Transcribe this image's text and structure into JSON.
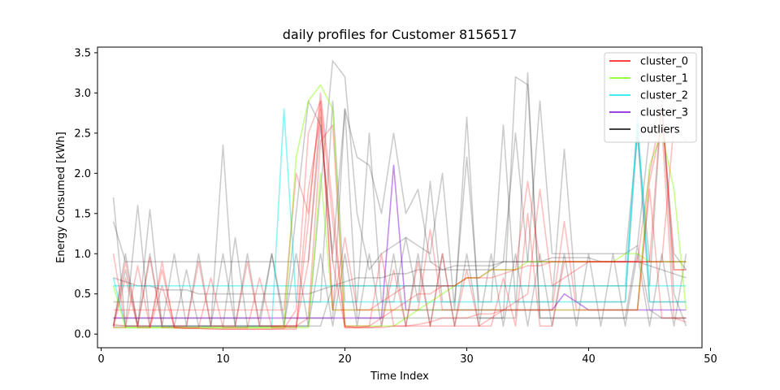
{
  "chart_data": {
    "type": "line",
    "title": "daily profiles for Customer 8156517",
    "xlabel": "Time Index",
    "ylabel": "Energy Consumed [kWh]",
    "xlim": [
      -0.3,
      49.3
    ],
    "ylim": [
      -0.17,
      3.57
    ],
    "x_ticks": [
      0,
      10,
      20,
      30,
      40,
      50
    ],
    "y_ticks": [
      0.0,
      0.5,
      1.0,
      1.5,
      2.0,
      2.5,
      3.0,
      3.5
    ],
    "x_tick_labels": [
      "0",
      "10",
      "20",
      "30",
      "40",
      "50"
    ],
    "y_tick_labels": [
      "0.0",
      "0.5",
      "1.0",
      "1.5",
      "2.0",
      "2.5",
      "3.0",
      "3.5"
    ],
    "grid": false,
    "legend_position": "top-right",
    "x": [
      1,
      2,
      3,
      4,
      5,
      6,
      7,
      8,
      9,
      10,
      11,
      12,
      13,
      14,
      15,
      16,
      17,
      18,
      19,
      20,
      21,
      22,
      23,
      24,
      25,
      26,
      27,
      28,
      29,
      30,
      31,
      32,
      33,
      34,
      35,
      36,
      37,
      38,
      39,
      40,
      41,
      42,
      43,
      44,
      45,
      46,
      47,
      48
    ],
    "series": [
      {
        "name": "cluster_0",
        "color": "#ff0000",
        "line_opacity": 0.25,
        "profiles": [
          [
            0.1,
            0.9,
            0.1,
            0.95,
            0.08,
            0.08,
            0.07,
            0.07,
            0.06,
            0.06,
            0.06,
            0.06,
            0.06,
            0.06,
            0.07,
            0.3,
            2.5,
            2.9,
            1.4,
            0.1,
            0.08,
            0.1,
            0.2,
            0.3,
            0.4,
            0.5,
            0.5,
            0.6,
            0.6,
            0.7,
            0.7,
            0.7,
            0.75,
            0.8,
            0.85,
            0.85,
            0.9,
            0.9,
            0.9,
            0.9,
            0.9,
            0.9,
            0.9,
            0.9,
            2.0,
            2.8,
            0.8,
            0.8
          ],
          [
            0.08,
            0.08,
            0.85,
            0.08,
            0.9,
            0.08,
            0.07,
            0.07,
            0.07,
            0.06,
            0.06,
            0.06,
            0.06,
            0.06,
            0.06,
            0.06,
            1.8,
            2.7,
            0.9,
            0.08,
            0.08,
            0.08,
            0.08,
            0.1,
            0.1,
            0.12,
            0.15,
            0.2,
            0.2,
            0.2,
            0.25,
            0.25,
            0.3,
            0.3,
            0.3,
            0.3,
            0.3,
            0.3,
            0.3,
            0.3,
            0.3,
            0.3,
            0.3,
            0.3,
            1.9,
            2.6,
            0.2,
            0.15
          ],
          [
            0.12,
            0.1,
            0.1,
            0.1,
            0.8,
            0.1,
            0.1,
            0.9,
            0.1,
            0.1,
            0.1,
            0.9,
            0.1,
            0.1,
            0.1,
            0.1,
            0.2,
            2.4,
            2.6,
            0.1,
            0.1,
            0.1,
            1.0,
            0.1,
            0.1,
            0.9,
            0.1,
            0.1,
            0.1,
            0.8,
            0.1,
            0.1,
            0.7,
            0.1,
            1.5,
            0.1,
            0.1,
            0.9,
            0.9,
            0.9,
            0.9,
            0.9,
            0.9,
            0.9,
            0.9,
            0.9,
            2.6,
            2.4
          ],
          [
            0.08,
            0.7,
            0.08,
            0.08,
            0.6,
            0.08,
            0.08,
            0.08,
            0.7,
            0.08,
            0.08,
            0.08,
            0.7,
            0.08,
            0.08,
            0.08,
            1.4,
            3.0,
            1.6,
            0.08,
            0.08,
            0.08,
            0.1,
            0.8,
            0.1,
            0.1,
            0.1,
            1.0,
            0.1,
            0.1,
            0.1,
            0.2,
            0.3,
            0.4,
            0.5,
            1.8,
            0.6,
            0.7,
            0.8,
            0.9,
            0.9,
            0.9,
            0.9,
            0.9,
            0.9,
            2.9,
            0.8,
            0.8
          ],
          [
            1.0,
            0.1,
            0.1,
            0.1,
            0.1,
            0.1,
            0.1,
            0.1,
            0.1,
            0.1,
            0.1,
            0.1,
            0.1,
            0.1,
            0.1,
            0.1,
            0.9,
            2.8,
            0.3,
            1.2,
            0.3,
            0.3,
            0.3,
            0.3,
            0.3,
            0.3,
            1.3,
            0.3,
            0.3,
            0.3,
            0.3,
            0.3,
            0.3,
            0.3,
            0.3,
            0.3,
            0.3,
            1.4,
            0.3,
            0.3,
            0.3,
            0.3,
            0.3,
            0.3,
            1.8,
            0.2,
            0.2,
            0.2
          ],
          [
            0.3,
            0.3,
            0.3,
            0.3,
            0.3,
            0.3,
            0.3,
            0.3,
            0.3,
            0.3,
            0.3,
            0.3,
            0.3,
            0.3,
            0.3,
            2.0,
            1.5,
            2.9,
            0.3,
            0.3,
            0.3,
            0.3,
            0.4,
            0.5,
            0.6,
            0.6,
            0.6,
            0.6,
            0.6,
            0.7,
            0.7,
            0.8,
            0.8,
            0.8,
            1.9,
            0.9,
            0.9,
            0.9,
            0.9,
            0.9,
            0.9,
            0.9,
            0.9,
            0.9,
            0.9,
            0.9,
            0.9,
            0.9
          ]
        ]
      },
      {
        "name": "cluster_1",
        "color": "#7fff00",
        "line_opacity": 0.45,
        "profiles": [
          [
            0.6,
            0.08,
            0.08,
            0.08,
            0.08,
            0.08,
            0.08,
            0.08,
            0.08,
            0.08,
            0.08,
            0.08,
            0.08,
            0.08,
            0.1,
            2.2,
            2.9,
            3.1,
            2.8,
            0.1,
            0.1,
            0.1,
            0.1,
            0.1,
            0.2,
            0.3,
            0.4,
            0.5,
            0.6,
            0.7,
            0.7,
            0.8,
            0.8,
            0.8,
            0.9,
            0.9,
            0.9,
            0.9,
            0.9,
            0.9,
            0.9,
            0.9,
            1.0,
            1.0,
            0.9,
            0.9,
            0.9,
            0.9
          ],
          [
            0.08,
            0.08,
            0.08,
            0.08,
            0.08,
            0.08,
            0.08,
            0.08,
            0.08,
            0.08,
            0.08,
            0.08,
            0.08,
            0.08,
            0.08,
            0.08,
            0.08,
            2.0,
            0.3,
            0.3,
            0.3,
            0.3,
            0.3,
            0.3,
            0.3,
            0.3,
            0.3,
            0.3,
            0.3,
            0.3,
            0.3,
            0.3,
            0.3,
            0.3,
            0.3,
            0.3,
            0.3,
            0.3,
            0.3,
            0.3,
            0.3,
            0.3,
            0.3,
            0.3,
            2.1,
            2.5,
            1.8,
            0.3
          ]
        ]
      },
      {
        "name": "cluster_2",
        "color": "#00e5ee",
        "line_opacity": 0.45,
        "profiles": [
          [
            0.7,
            0.1,
            0.1,
            0.1,
            0.1,
            0.1,
            0.1,
            0.1,
            0.1,
            0.1,
            0.1,
            0.1,
            0.1,
            0.1,
            2.8,
            0.4,
            0.4,
            0.4,
            0.4,
            0.4,
            0.4,
            0.4,
            0.4,
            0.4,
            0.4,
            0.4,
            0.4,
            0.4,
            0.4,
            0.4,
            0.4,
            0.4,
            0.4,
            0.4,
            0.4,
            0.4,
            0.4,
            0.4,
            0.4,
            0.4,
            0.4,
            0.4,
            0.4,
            2.7,
            0.4,
            0.4,
            0.4,
            0.4
          ],
          [
            0.6,
            0.6,
            0.6,
            0.6,
            0.6,
            0.6,
            0.6,
            0.6,
            0.6,
            0.6,
            0.6,
            0.6,
            0.6,
            0.6,
            0.6,
            0.6,
            0.6,
            0.6,
            0.6,
            0.6,
            0.6,
            0.6,
            0.6,
            0.6,
            0.6,
            0.6,
            0.6,
            0.6,
            0.6,
            0.6,
            0.6,
            0.6,
            0.6,
            0.6,
            0.6,
            0.6,
            0.6,
            0.6,
            0.6,
            0.6,
            0.6,
            0.6,
            0.6,
            2.6,
            0.6,
            0.6,
            0.6,
            0.6
          ]
        ]
      },
      {
        "name": "cluster_3",
        "color": "#7b00d6",
        "line_opacity": 0.45,
        "profiles": [
          [
            0.2,
            0.2,
            0.2,
            0.2,
            0.2,
            0.2,
            0.2,
            0.2,
            0.2,
            0.2,
            0.2,
            0.2,
            0.2,
            0.2,
            0.2,
            0.2,
            0.2,
            0.2,
            0.2,
            0.2,
            0.2,
            0.2,
            0.2,
            2.1,
            0.3,
            0.3,
            0.3,
            0.3,
            0.3,
            0.3,
            0.3,
            0.3,
            0.3,
            0.3,
            0.3,
            0.3,
            0.3,
            0.5,
            0.4,
            0.3,
            0.3,
            0.3,
            0.3,
            0.3,
            0.3,
            0.3,
            0.3,
            0.3
          ]
        ]
      },
      {
        "name": "outliers",
        "color": "#000000",
        "line_opacity": 0.2,
        "profiles": [
          [
            1.7,
            0.1,
            1.6,
            0.1,
            0.1,
            0.1,
            0.1,
            0.1,
            0.1,
            2.35,
            0.1,
            0.1,
            0.1,
            0.1,
            0.1,
            0.1,
            0.1,
            1.8,
            3.4,
            3.2,
            1.5,
            0.8,
            1.0,
            1.1,
            1.2,
            1.1,
            1.0,
            2.0,
            0.3,
            2.7,
            0.2,
            0.2,
            0.2,
            3.2,
            3.1,
            0.2,
            0.2,
            0.2,
            0.2,
            0.2,
            0.2,
            0.2,
            0.2,
            1.1,
            0.3,
            0.2,
            0.2,
            0.2
          ],
          [
            0.1,
            0.8,
            0.1,
            1.55,
            0.1,
            0.1,
            0.8,
            0.1,
            0.1,
            0.1,
            1.2,
            0.1,
            0.1,
            0.1,
            0.1,
            1.5,
            2.9,
            2.6,
            1.0,
            2.8,
            2.2,
            2.1,
            1.5,
            2.5,
            1.5,
            1.8,
            0.9,
            0.8,
            0.8,
            0.8,
            0.8,
            0.8,
            0.9,
            0.9,
            0.9,
            2.9,
            1.0,
            1.0,
            1.0,
            1.0,
            1.0,
            1.0,
            1.0,
            1.1,
            2.5,
            2.8,
            1.0,
            0.8
          ],
          [
            0.4,
            0.4,
            0.4,
            0.4,
            0.4,
            0.4,
            0.4,
            0.4,
            0.4,
            0.4,
            0.4,
            0.4,
            0.4,
            0.4,
            0.4,
            0.4,
            0.4,
            0.4,
            2.9,
            0.4,
            0.4,
            2.5,
            0.4,
            0.4,
            1.2,
            0.4,
            1.9,
            0.4,
            0.4,
            2.2,
            0.4,
            0.4,
            2.6,
            0.4,
            0.4,
            0.4,
            0.4,
            2.3,
            0.4,
            0.4,
            0.4,
            0.4,
            0.4,
            2.5,
            0.4,
            0.4,
            0.4,
            0.4
          ],
          [
            0.7,
            0.65,
            0.6,
            0.6,
            0.55,
            0.55,
            0.55,
            0.5,
            0.5,
            0.5,
            0.5,
            0.5,
            0.5,
            0.5,
            0.5,
            0.5,
            0.5,
            0.55,
            0.6,
            0.65,
            0.7,
            0.7,
            0.7,
            0.75,
            0.75,
            0.8,
            0.8,
            0.8,
            0.85,
            0.85,
            0.85,
            0.85,
            0.9,
            0.9,
            0.9,
            0.9,
            0.95,
            0.95,
            0.95,
            0.95,
            0.9,
            0.9,
            0.9,
            0.9,
            0.85,
            0.8,
            0.75,
            0.7
          ],
          [
            0.1,
            0.1,
            0.1,
            0.1,
            0.1,
            0.1,
            0.1,
            0.1,
            0.1,
            0.1,
            0.1,
            0.1,
            0.1,
            0.1,
            0.1,
            0.1,
            0.1,
            0.1,
            0.6,
            0.6,
            0.6,
            0.6,
            0.6,
            0.6,
            0.6,
            0.6,
            0.6,
            0.6,
            0.6,
            0.6,
            0.6,
            0.6,
            0.6,
            0.6,
            0.6,
            0.6,
            0.6,
            0.6,
            0.6,
            0.6,
            0.6,
            0.6,
            0.6,
            0.6,
            0.6,
            2.9,
            0.5,
            0.1
          ],
          [
            0.2,
            0.2,
            0.2,
            0.2,
            0.2,
            0.2,
            0.2,
            0.2,
            0.2,
            0.2,
            0.2,
            0.2,
            0.2,
            1.0,
            0.2,
            0.2,
            0.2,
            0.2,
            0.2,
            2.8,
            0.2,
            0.2,
            0.2,
            0.2,
            0.2,
            0.2,
            0.2,
            0.2,
            0.2,
            0.2,
            0.2,
            0.2,
            0.2,
            0.2,
            3.25,
            0.2,
            0.2,
            0.2,
            0.2,
            0.2,
            0.2,
            0.2,
            0.2,
            0.2,
            0.2,
            0.2,
            0.2,
            0.2
          ],
          [
            1.4,
            0.9,
            0.9,
            0.9,
            0.9,
            0.9,
            0.9,
            0.9,
            0.9,
            0.9,
            0.9,
            0.9,
            0.9,
            0.9,
            0.9,
            0.9,
            0.9,
            2.6,
            0.9,
            0.9,
            0.9,
            0.9,
            0.9,
            0.9,
            0.9,
            0.9,
            0.9,
            0.9,
            0.9,
            0.9,
            0.9,
            0.9,
            0.9,
            2.5,
            0.9,
            0.9,
            0.9,
            0.9,
            0.9,
            0.9,
            0.9,
            0.9,
            0.9,
            2.5,
            0.9,
            0.9,
            0.9,
            0.9
          ],
          [
            0.1,
            1.0,
            0.1,
            1.0,
            0.1,
            1.0,
            0.1,
            1.0,
            0.1,
            1.0,
            0.1,
            1.0,
            0.1,
            1.0,
            0.1,
            1.0,
            0.1,
            1.0,
            0.1,
            1.0,
            0.1,
            1.0,
            0.1,
            1.0,
            0.1,
            1.0,
            0.1,
            1.0,
            0.1,
            1.0,
            0.1,
            1.0,
            0.1,
            1.0,
            0.1,
            1.0,
            0.1,
            1.0,
            0.1,
            1.0,
            0.1,
            1.0,
            0.1,
            1.0,
            0.1,
            1.0,
            0.1,
            1.0
          ]
        ]
      }
    ]
  }
}
